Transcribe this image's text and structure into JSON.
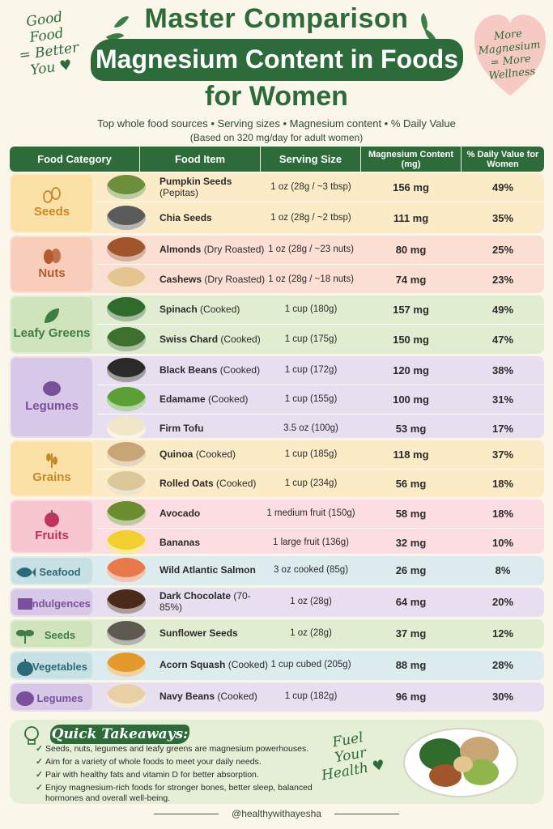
{
  "note_left": {
    "lines": [
      "Good",
      "Food",
      "= Better",
      "You ♥"
    ]
  },
  "note_right": {
    "lines": [
      "More",
      "Magnesium",
      "= More",
      "Wellness"
    ]
  },
  "title": {
    "line1": "Master Comparison",
    "line2": "Magnesium Content in Foods",
    "line3": "for Women"
  },
  "subtitle": "Top whole food sources   •   Serving sizes   •   Magnesium content   •   % Daily Value",
  "basis": "(Based on 320 mg/day for adult women)",
  "table": {
    "headers": {
      "category": "Food Category",
      "item": "Food Item",
      "serving": "Serving Size",
      "magnesium": "Magnesium Content (mg)",
      "dv": "% Daily Value for Women"
    },
    "groups": [
      {
        "category": "Seeds",
        "icon": "seeds-icon",
        "bg": "#fcebc7",
        "catbg": "#fbe1a6",
        "color": "#c5892a",
        "rows": [
          {
            "item": "Pumpkin Seeds",
            "sub": "(Pepitas)",
            "serving": "1 oz (28g / ~3 tbsp)",
            "mg": "156 mg",
            "dv": "49%",
            "thumb": "#6e8f3a"
          },
          {
            "item": "Chia Seeds",
            "sub": "",
            "serving": "1 oz (28g / ~2 tbsp)",
            "mg": "111 mg",
            "dv": "35%",
            "thumb": "#5b5b5b"
          }
        ]
      },
      {
        "category": "Nuts",
        "icon": "almond-icon",
        "bg": "#fbdfd3",
        "catbg": "#f8cdb9",
        "color": "#b55a2c",
        "rows": [
          {
            "item": "Almonds",
            "sub": "(Dry Roasted)",
            "serving": "1 oz (28g / ~23 nuts)",
            "mg": "80 mg",
            "dv": "25%",
            "thumb": "#a0552a"
          },
          {
            "item": "Cashews",
            "sub": "(Dry Roasted)",
            "serving": "1 oz (28g / ~18 nuts)",
            "mg": "74 mg",
            "dv": "23%",
            "thumb": "#e4c58f"
          }
        ]
      },
      {
        "category": "Leafy Greens",
        "icon": "leaf-icon",
        "bg": "#e1edd1",
        "catbg": "#d0e4bb",
        "color": "#3e7d44",
        "rows": [
          {
            "item": "Spinach",
            "sub": "(Cooked)",
            "serving": "1 cup (180g)",
            "mg": "157 mg",
            "dv": "49%",
            "thumb": "#2f6b2a"
          },
          {
            "item": "Swiss Chard",
            "sub": "(Cooked)",
            "serving": "1 cup (175g)",
            "mg": "150 mg",
            "dv": "47%",
            "thumb": "#3d6f2e"
          }
        ]
      },
      {
        "category": "Legumes",
        "icon": "bean-icon",
        "bg": "#e7def0",
        "catbg": "#d7c8e8",
        "color": "#7a4f9c",
        "rows": [
          {
            "item": "Black Beans",
            "sub": "(Cooked)",
            "serving": "1 cup (172g)",
            "mg": "120 mg",
            "dv": "38%",
            "thumb": "#2a2a2a"
          },
          {
            "item": "Edamame",
            "sub": "(Cooked)",
            "serving": "1 cup (155g)",
            "mg": "100 mg",
            "dv": "31%",
            "thumb": "#5aa035"
          },
          {
            "item": "Firm Tofu",
            "sub": "",
            "serving": "3.5 oz (100g)",
            "mg": "53 mg",
            "dv": "17%",
            "thumb": "#f1e6c8"
          }
        ]
      },
      {
        "category": "Grains",
        "icon": "wheat-icon",
        "bg": "#fcebc7",
        "catbg": "#fbe1a6",
        "color": "#c5892a",
        "rows": [
          {
            "item": "Quinoa",
            "sub": "(Cooked)",
            "serving": "1 cup (185g)",
            "mg": "118 mg",
            "dv": "37%",
            "thumb": "#c8a574"
          },
          {
            "item": "Rolled Oats",
            "sub": "(Cooked)",
            "serving": "1 cup (234g)",
            "mg": "56 mg",
            "dv": "18%",
            "thumb": "#dcc79b"
          }
        ]
      },
      {
        "category": "Fruits",
        "icon": "apple-icon",
        "bg": "#fbdde2",
        "catbg": "#f8c6cf",
        "color": "#c2335a",
        "rows": [
          {
            "item": "Avocado",
            "sub": "",
            "serving": "1 medium fruit (150g)",
            "mg": "58 mg",
            "dv": "18%",
            "thumb": "#6b8d2e"
          },
          {
            "item": "Bananas",
            "sub": "",
            "serving": "1 large fruit (136g)",
            "mg": "32 mg",
            "dv": "10%",
            "thumb": "#f1cf2f"
          }
        ]
      },
      {
        "category": "Seafood",
        "icon": "fish-icon",
        "bg": "#dcecee",
        "catbg": "#c6e0e4",
        "color": "#2b6a78",
        "rows": [
          {
            "item": "Wild Atlantic Salmon",
            "sub": "",
            "serving": "3 oz cooked (85g)",
            "mg": "26 mg",
            "dv": "8%",
            "thumb": "#e8794a"
          }
        ]
      },
      {
        "category": "Indulgences",
        "icon": "chocolate-icon",
        "bg": "#e7def0",
        "catbg": "#d7c8e8",
        "color": "#7a4f9c",
        "rows": [
          {
            "item": "Dark Chocolate",
            "sub": "(70-85%)",
            "serving": "1 oz (28g)",
            "mg": "64 mg",
            "dv": "20%",
            "thumb": "#4a2a1a"
          }
        ]
      },
      {
        "category": "Seeds",
        "icon": "sprout-icon",
        "bg": "#e1edd1",
        "catbg": "#d0e4bb",
        "color": "#3e7d44",
        "rows": [
          {
            "item": "Sunflower Seeds",
            "sub": "",
            "serving": "1 oz (28g)",
            "mg": "37 mg",
            "dv": "12%",
            "thumb": "#5e5a52"
          }
        ]
      },
      {
        "category": "Vegetables",
        "icon": "squash-icon",
        "bg": "#dcecee",
        "catbg": "#c6e0e4",
        "color": "#2b6a78",
        "rows": [
          {
            "item": "Acorn Squash",
            "sub": "(Cooked)",
            "serving": "1 cup cubed (205g)",
            "mg": "88 mg",
            "dv": "28%",
            "thumb": "#e49a2a"
          }
        ]
      },
      {
        "category": "Legumes",
        "icon": "bean-icon",
        "bg": "#e7def0",
        "catbg": "#d7c8e8",
        "color": "#7a4f9c",
        "rows": [
          {
            "item": "Navy Beans",
            "sub": "(Cooked)",
            "serving": "1 cup (182g)",
            "mg": "96 mg",
            "dv": "30%",
            "thumb": "#e8cfa6"
          }
        ]
      }
    ]
  },
  "takeaways": {
    "title": "Quick Takeaways:",
    "items": [
      "Seeds, nuts, legumes and leafy greens are magnesium powerhouses.",
      "Aim for a variety of whole foods to meet your daily needs.",
      "Pair with healthy fats and vitamin D for better absorption.",
      "Enjoy magnesium-rich foods for stronger bones, better sleep, balanced hormones and overall well-being."
    ]
  },
  "fuel": {
    "lines": [
      "Fuel",
      "Your",
      "Health ♥"
    ]
  },
  "handle": "@healthywithayesha",
  "colors": {
    "brand_green": "#2e6b3a",
    "background": "#fbf6ea"
  }
}
